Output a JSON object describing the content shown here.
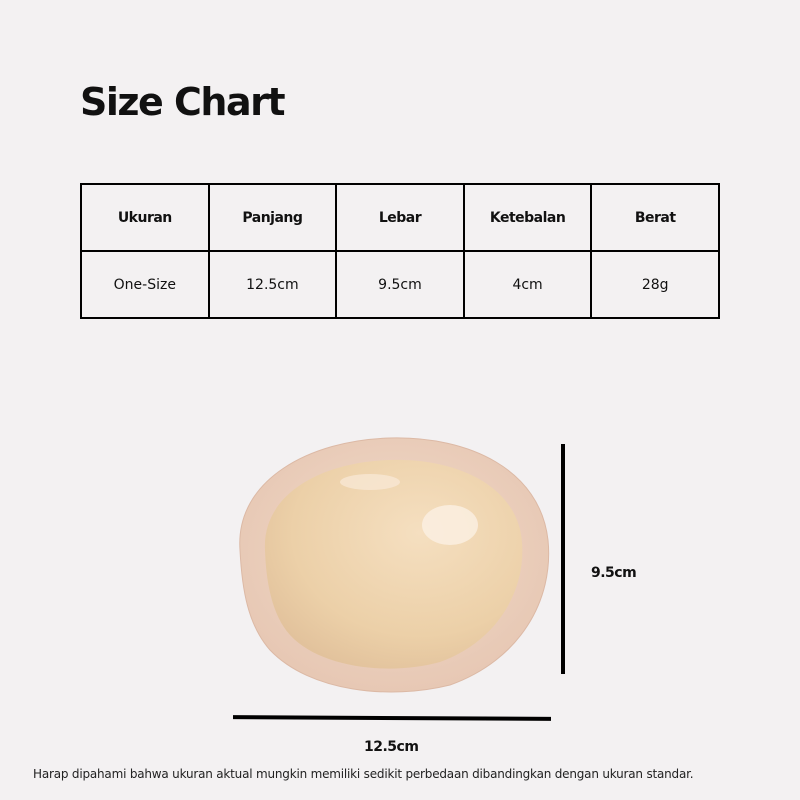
{
  "title": "Size Chart",
  "table": {
    "headers": [
      "Ukuran",
      "Panjang",
      "Lebar",
      "Ketebalan",
      "Berat"
    ],
    "rows": [
      [
        "One-Size",
        "12.5cm",
        "9.5cm",
        "4cm",
        "28g"
      ]
    ]
  },
  "dimensions": {
    "height_label": "9.5cm",
    "width_label": "12.5cm"
  },
  "note": "Harap dipahami bahwa ukuran aktual mungkin memiliki sedikit perbedaan dibandingkan dengan ukuran standar.",
  "colors": {
    "background": "#f3f1f2",
    "pad_rim": "#ecd2c0",
    "pad_center": "#efd5b2"
  }
}
